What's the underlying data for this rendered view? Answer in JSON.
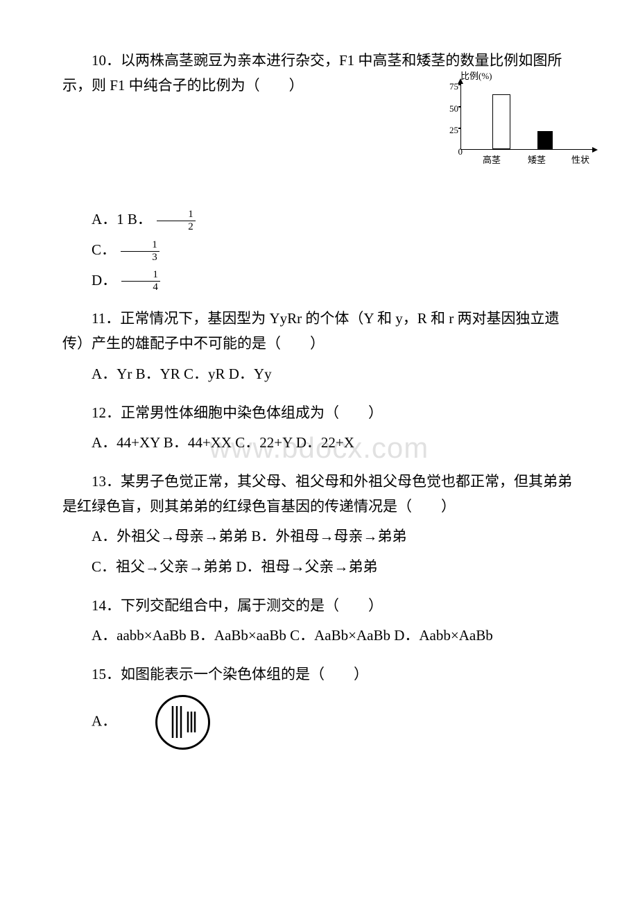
{
  "watermark": "www.bdocx.com",
  "q10": {
    "text_a": "10．以两株高茎豌豆为亲本进行杂交，F1 中高茎和矮茎的数量比例如图所示，则 F1 中纯合子的比例为（　　）",
    "optA_pre": "A．1 B．",
    "optC_pre": "C．",
    "optD_pre": "D．",
    "fracB_num": "1",
    "fracB_den": "2",
    "fracC_num": "1",
    "fracC_den": "3",
    "fracD_num": "1",
    "fracD_den": "4",
    "chart": {
      "ylabel": "比例(%)",
      "ylim": [
        0,
        90
      ],
      "yticks": [
        0,
        25,
        50,
        75
      ],
      "categories": [
        "高茎",
        "矮茎",
        "性状"
      ],
      "bars": [
        {
          "x": 45,
          "width": 26,
          "height_pct": 75,
          "fill": "#ffffff",
          "border": "#000000"
        },
        {
          "x": 110,
          "width": 22,
          "height_pct": 25,
          "fill": "#000000",
          "border": "#000000"
        }
      ],
      "line_color": "#000000",
      "bg": "#ffffff"
    }
  },
  "q11": {
    "text": "11．正常情况下，基因型为 YyRr 的个体（Y 和 y，R 和 r 两对基因独立遗传）产生的雄配子中不可能的是（　　）",
    "opts": "A．Yr B．YR C．yR D．Yy"
  },
  "q12": {
    "text": "12．正常男性体细胞中染色体组成为（　　）",
    "opts": "A．44+XY B．44+XX C．22+Y D．22+X"
  },
  "q13": {
    "text": "13．某男子色觉正常，其父母、祖父母和外祖父母色觉也都正常，但其弟弟是红绿色盲，则其弟弟的红绿色盲基因的传递情况是（　　）",
    "optsA": "A．外祖父→母亲→弟弟 B．外祖母→母亲→弟弟",
    "optsC": "C．祖父→父亲→弟弟 D．祖母→父亲→弟弟"
  },
  "q14": {
    "text": "14．下列交配组合中，属于测交的是（　　）",
    "opts": "A．aabb×AaBb B．AaBb×aaBb C．AaBb×AaBb D．Aabb×AaBb"
  },
  "q15": {
    "text": "15．如图能表示一个染色体组的是（　　）",
    "optA": "A．",
    "circle": {
      "stroke": "#000000",
      "stroke_width": 2.5,
      "lines": [
        {
          "x": 28,
          "h": 46
        },
        {
          "x": 34,
          "h": 46
        },
        {
          "x": 40,
          "h": 46
        },
        {
          "x": 50,
          "h": 30
        },
        {
          "x": 55,
          "h": 30
        },
        {
          "x": 60,
          "h": 30
        }
      ]
    }
  }
}
